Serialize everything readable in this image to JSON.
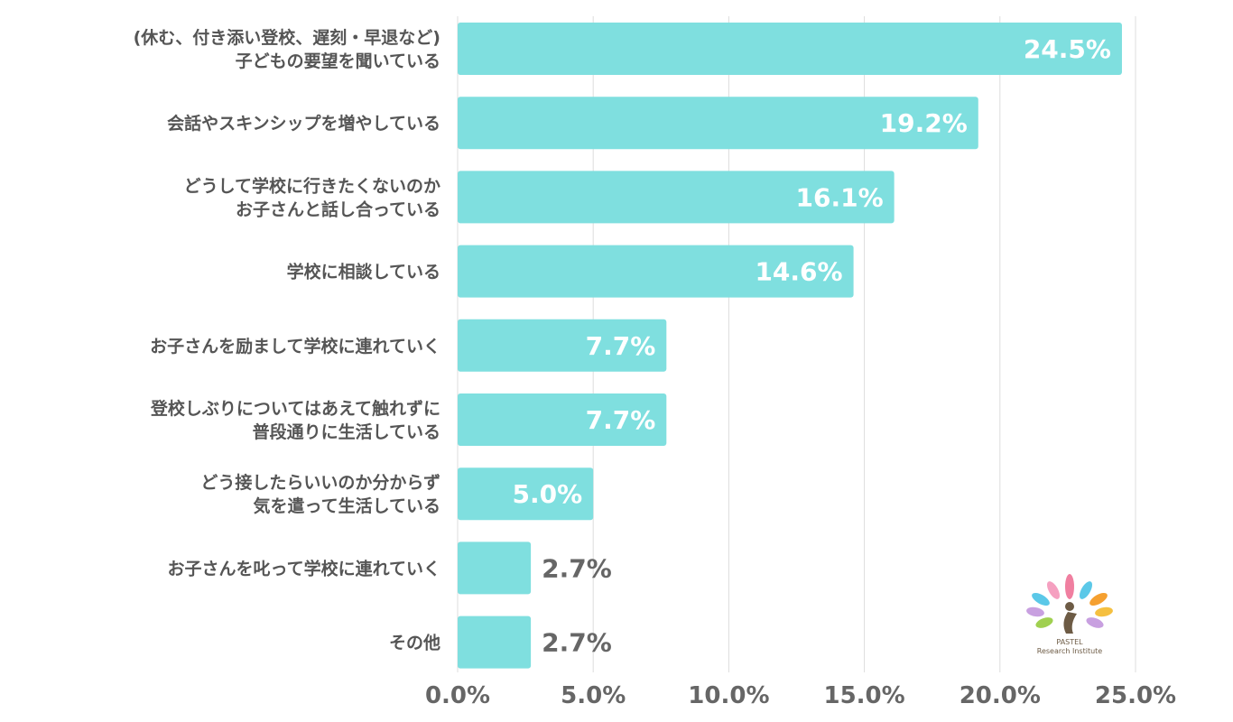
{
  "chart_data": {
    "type": "bar",
    "orientation": "horizontal",
    "categories": [
      [
        "(休む、付き添い登校、遅刻・早退など)",
        "子どもの要望を聞いている"
      ],
      [
        "会話やスキンシップを増やしている"
      ],
      [
        "どうして学校に行きたくないのか",
        "お子さんと話し合っている"
      ],
      [
        "学校に相談している"
      ],
      [
        "お子さんを励まして学校に連れていく"
      ],
      [
        "登校しぶりについてはあえて触れずに",
        "普段通りに生活している"
      ],
      [
        "どう接したらいいのか分からず",
        "気を遣って生活している"
      ],
      [
        "お子さんを叱って学校に連れていく"
      ],
      [
        "その他"
      ]
    ],
    "values": [
      24.5,
      19.2,
      16.1,
      14.6,
      7.7,
      7.7,
      5.0,
      2.7,
      2.7
    ],
    "value_labels": [
      "24.5%",
      "19.2%",
      "16.1%",
      "14.6%",
      "7.7%",
      "7.7%",
      "5.0%",
      "2.7%",
      "2.7%"
    ],
    "xlim": [
      0,
      25
    ],
    "xticks": [
      0,
      5,
      10,
      15,
      20,
      25
    ],
    "xtick_labels": [
      "0.0%",
      "5.0%",
      "10.0%",
      "15.0%",
      "20.0%",
      "25.0%"
    ],
    "grid": "vertical",
    "title": "",
    "xlabel": "",
    "ylabel": "",
    "colors": {
      "bar": "#7fdfdf",
      "grid": "#dddddd",
      "label_inside": "#ffffff",
      "label_outside": "#666666"
    }
  },
  "logo": {
    "line1": "PASTEL",
    "line2": "Research Institute"
  }
}
